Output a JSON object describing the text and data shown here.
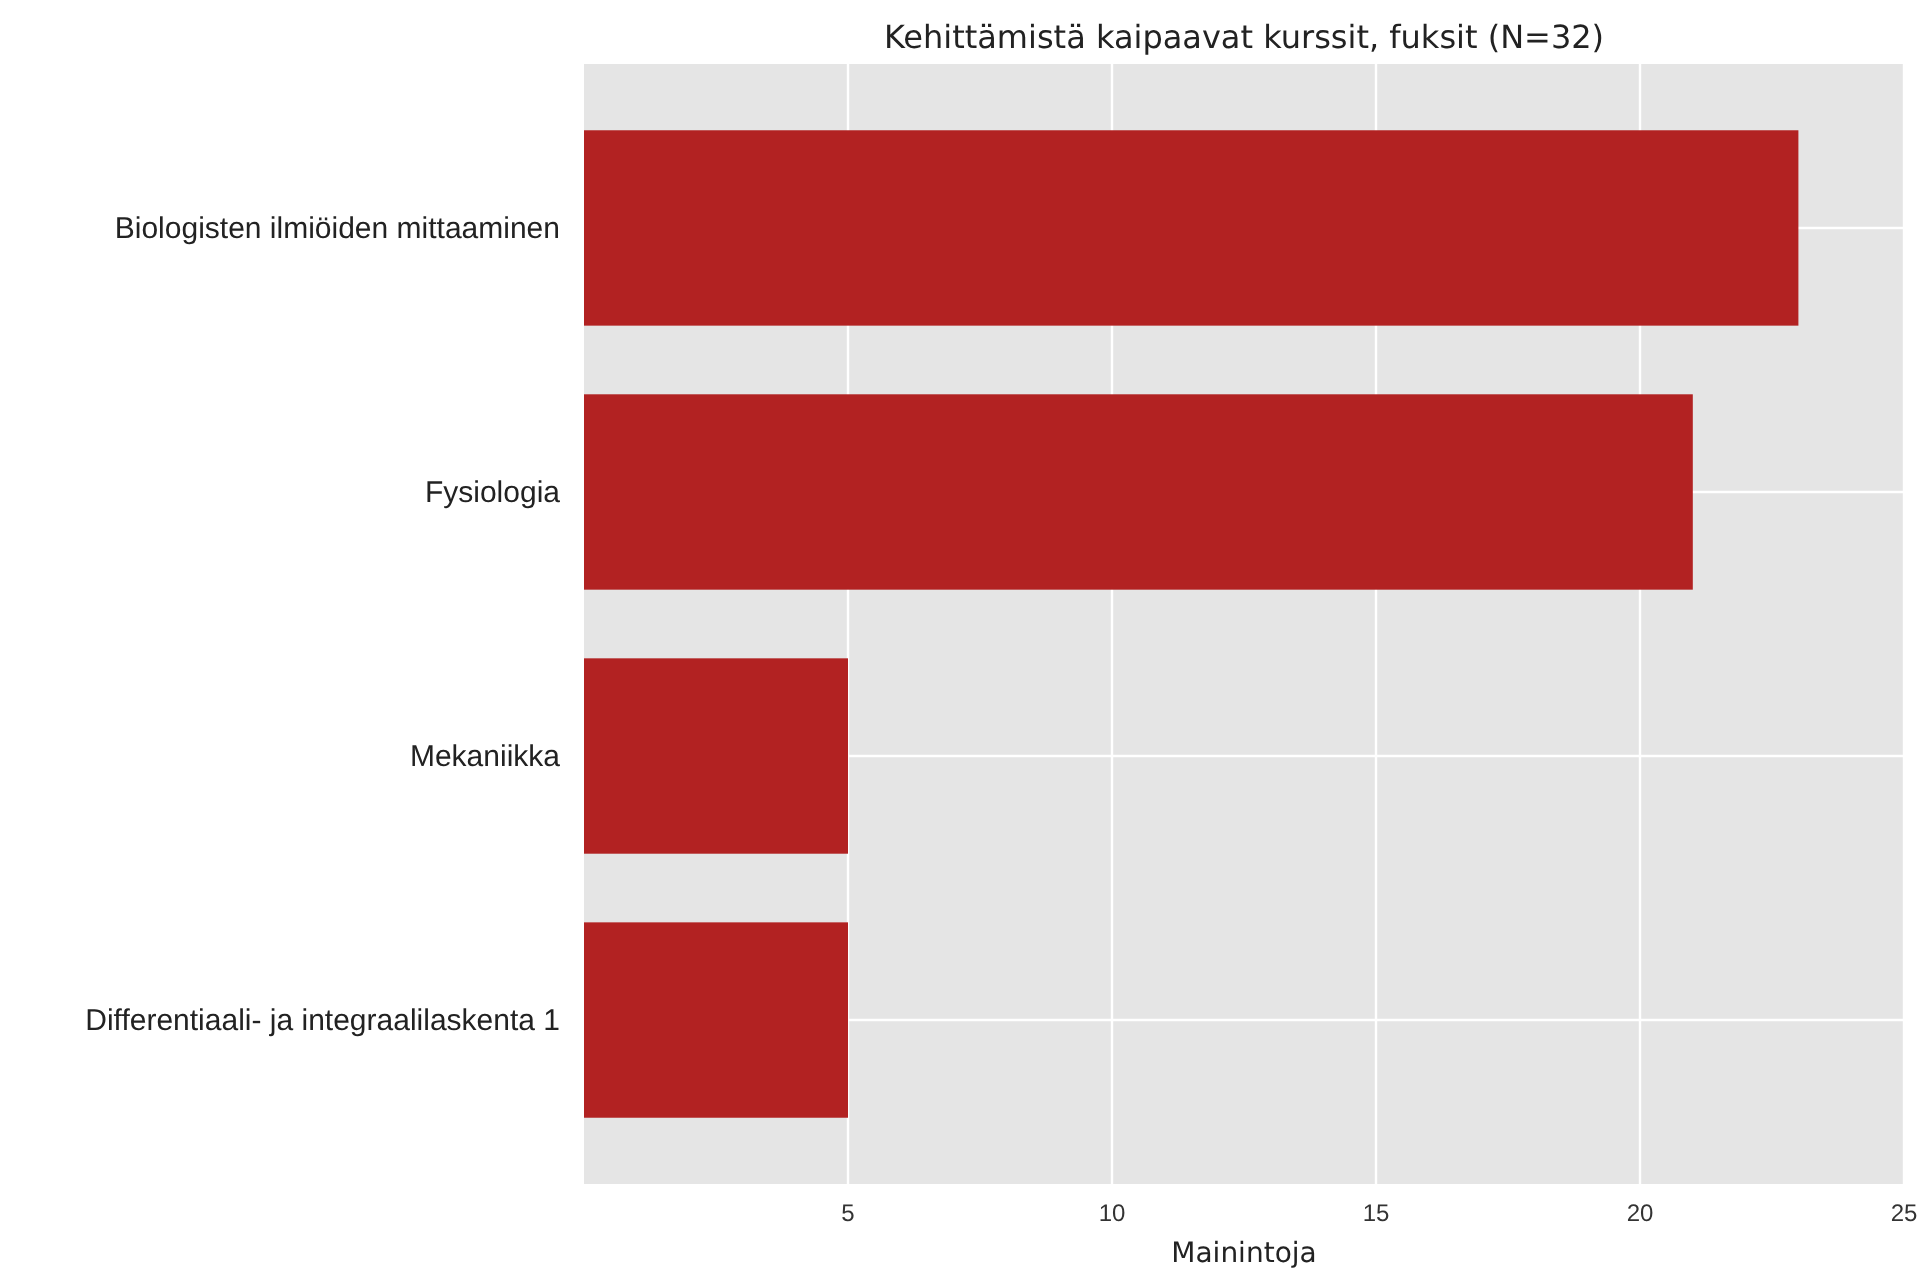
{
  "chart_data": {
    "type": "bar",
    "orientation": "horizontal",
    "title": "Kehittämistä kaipaavat kurssit, fuksit (N=32)",
    "xlabel": "Mainintoja",
    "categories": [
      "Biologisten ilmiöiden mittaaminen",
      "Fysiologia",
      "Mekaniikka",
      "Differentiaali- ja integraalilaskenta 1"
    ],
    "values": [
      23,
      21,
      5,
      5
    ],
    "color": "#b22222",
    "xlim": [
      0,
      25
    ],
    "xticks": [
      5,
      10,
      15,
      20,
      25
    ],
    "grid": true
  }
}
